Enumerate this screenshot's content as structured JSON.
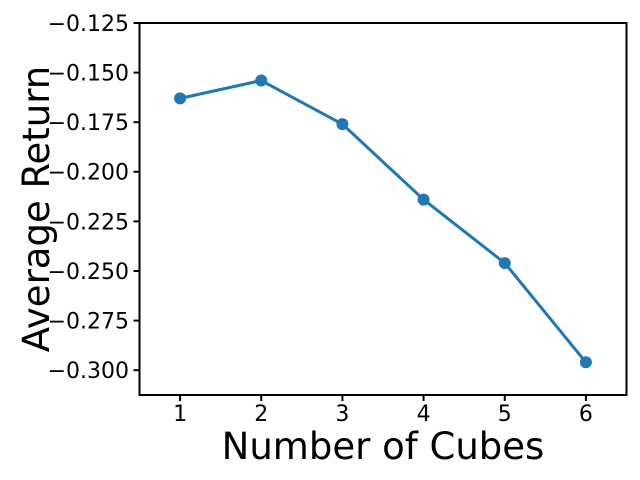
{
  "figure": {
    "background_color": "#ffffff",
    "axis_color": "#000000",
    "text_color": "#000000"
  },
  "chart_data": {
    "type": "line",
    "title": "",
    "xlabel": "Number of Cubes",
    "ylabel": "Average Return",
    "x": [
      1,
      2,
      3,
      4,
      5,
      6
    ],
    "y": [
      -0.163,
      -0.154,
      -0.176,
      -0.214,
      -0.246,
      -0.296
    ],
    "xlim": [
      0.5,
      6.5
    ],
    "ylim": [
      -0.3125,
      -0.125
    ],
    "x_ticks": [
      1,
      2,
      3,
      4,
      5,
      6
    ],
    "x_tick_labels": [
      "1",
      "2",
      "3",
      "4",
      "5",
      "6"
    ],
    "y_ticks": [
      -0.125,
      -0.15,
      -0.175,
      -0.2,
      -0.225,
      -0.25,
      -0.275,
      -0.3
    ],
    "y_tick_labels": [
      "−0.125",
      "−0.150",
      "−0.175",
      "−0.200",
      "−0.225",
      "−0.250",
      "−0.275",
      "−0.300"
    ],
    "line_color": "#1f77b4",
    "marker": "circle",
    "marker_color": "#1f77b4",
    "grid": false,
    "legend_position": "none"
  }
}
